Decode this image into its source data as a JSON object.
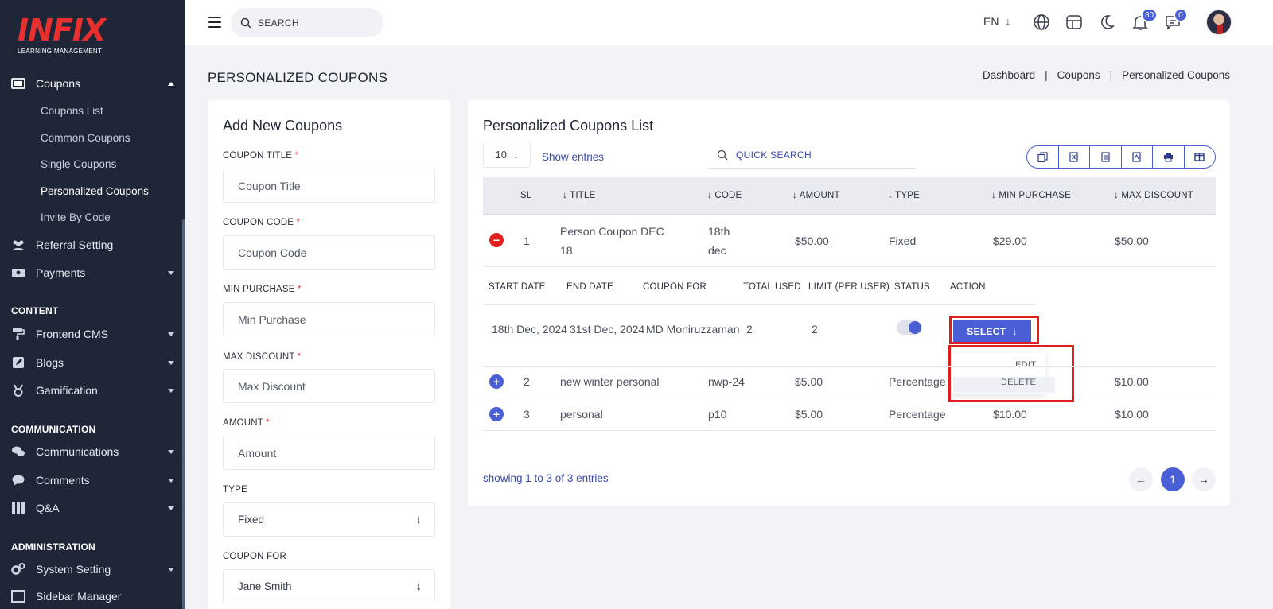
{
  "brand": {
    "logo": "INFIX",
    "tagline": "LEARNING MANAGEMENT",
    "accent": "#4a5fd6",
    "logo_color": "#e8312f"
  },
  "sidebar": {
    "coupons": "Coupons",
    "coupon_items": [
      "Coupons List",
      "Common Coupons",
      "Single Coupons",
      "Personalized Coupons",
      "Invite By Code"
    ],
    "referral": "Referral Setting",
    "payments": "Payments",
    "section_content": "CONTENT",
    "frontend": "Frontend CMS",
    "blogs": "Blogs",
    "gamification": "Gamification",
    "section_communication": "COMMUNICATION",
    "communications": "Communications",
    "comments": "Comments",
    "qa": "Q&A",
    "section_admin": "ADMINISTRATION",
    "system": "System Setting",
    "sidebar_manager": "Sidebar Manager"
  },
  "topbar": {
    "search_placeholder": "SEARCH",
    "language": "EN",
    "notifications_count": "80",
    "messages_count": "0"
  },
  "page": {
    "title": "PERSONALIZED COUPONS",
    "breadcrumb": [
      "Dashboard",
      "Coupons",
      "Personalized Coupons"
    ]
  },
  "form": {
    "title": "Add New Coupons",
    "coupon_title_label": "COUPON TITLE",
    "coupon_title_placeholder": "Coupon Title",
    "coupon_code_label": "COUPON CODE",
    "coupon_code_placeholder": "Coupon Code",
    "min_purchase_label": "MIN PURCHASE",
    "min_purchase_placeholder": "Min Purchase",
    "max_discount_label": "MAX DISCOUNT",
    "max_discount_placeholder": "Max Discount",
    "amount_label": "AMOUNT",
    "amount_placeholder": "Amount",
    "type_label": "TYPE",
    "type_value": "Fixed",
    "coupon_for_label": "COUPON FOR",
    "coupon_for_value": "Jane Smith",
    "required_mark": "*"
  },
  "list": {
    "title": "Personalized Coupons List",
    "page_size": "10",
    "show_entries": "Show entries",
    "quick_search_placeholder": "QUICK SEARCH",
    "columns": [
      "SL",
      "TITLE",
      "CODE",
      "AMOUNT",
      "TYPE",
      "MIN PURCHASE",
      "MAX DISCOUNT"
    ],
    "rows": [
      {
        "sl": "1",
        "title_line1": "Person Coupon DEC",
        "title_line2": "18",
        "code_line1": "18th",
        "code_line2": "dec",
        "amount": "$50.00",
        "type": "Fixed",
        "min_purchase": "$29.00",
        "max_discount": "$50.00"
      },
      {
        "sl": "2",
        "title": "new winter personal",
        "code": "nwp-24",
        "amount": "$5.00",
        "type": "Percentage",
        "min_purchase": "",
        "max_discount": "$10.00"
      },
      {
        "sl": "3",
        "title": "personal",
        "code": "p10",
        "amount": "$5.00",
        "type": "Percentage",
        "min_purchase": "$10.00",
        "max_discount": "$10.00"
      }
    ],
    "child_columns": [
      "START DATE",
      "END DATE",
      "COUPON FOR",
      "TOTAL USED",
      "LIMIT (PER USER)",
      "STATUS",
      "ACTION"
    ],
    "child_row": {
      "start_date": "18th Dec, 2024",
      "end_date": "31st Dec, 2024",
      "coupon_for": "MD Moniruzzaman",
      "total_used": "2",
      "limit": "2",
      "status_on": true
    },
    "action_button": "SELECT",
    "action_menu": [
      "EDIT",
      "DELETE"
    ],
    "footer_info": "showing 1 to 3 of 3 entries",
    "current_page": "1"
  }
}
